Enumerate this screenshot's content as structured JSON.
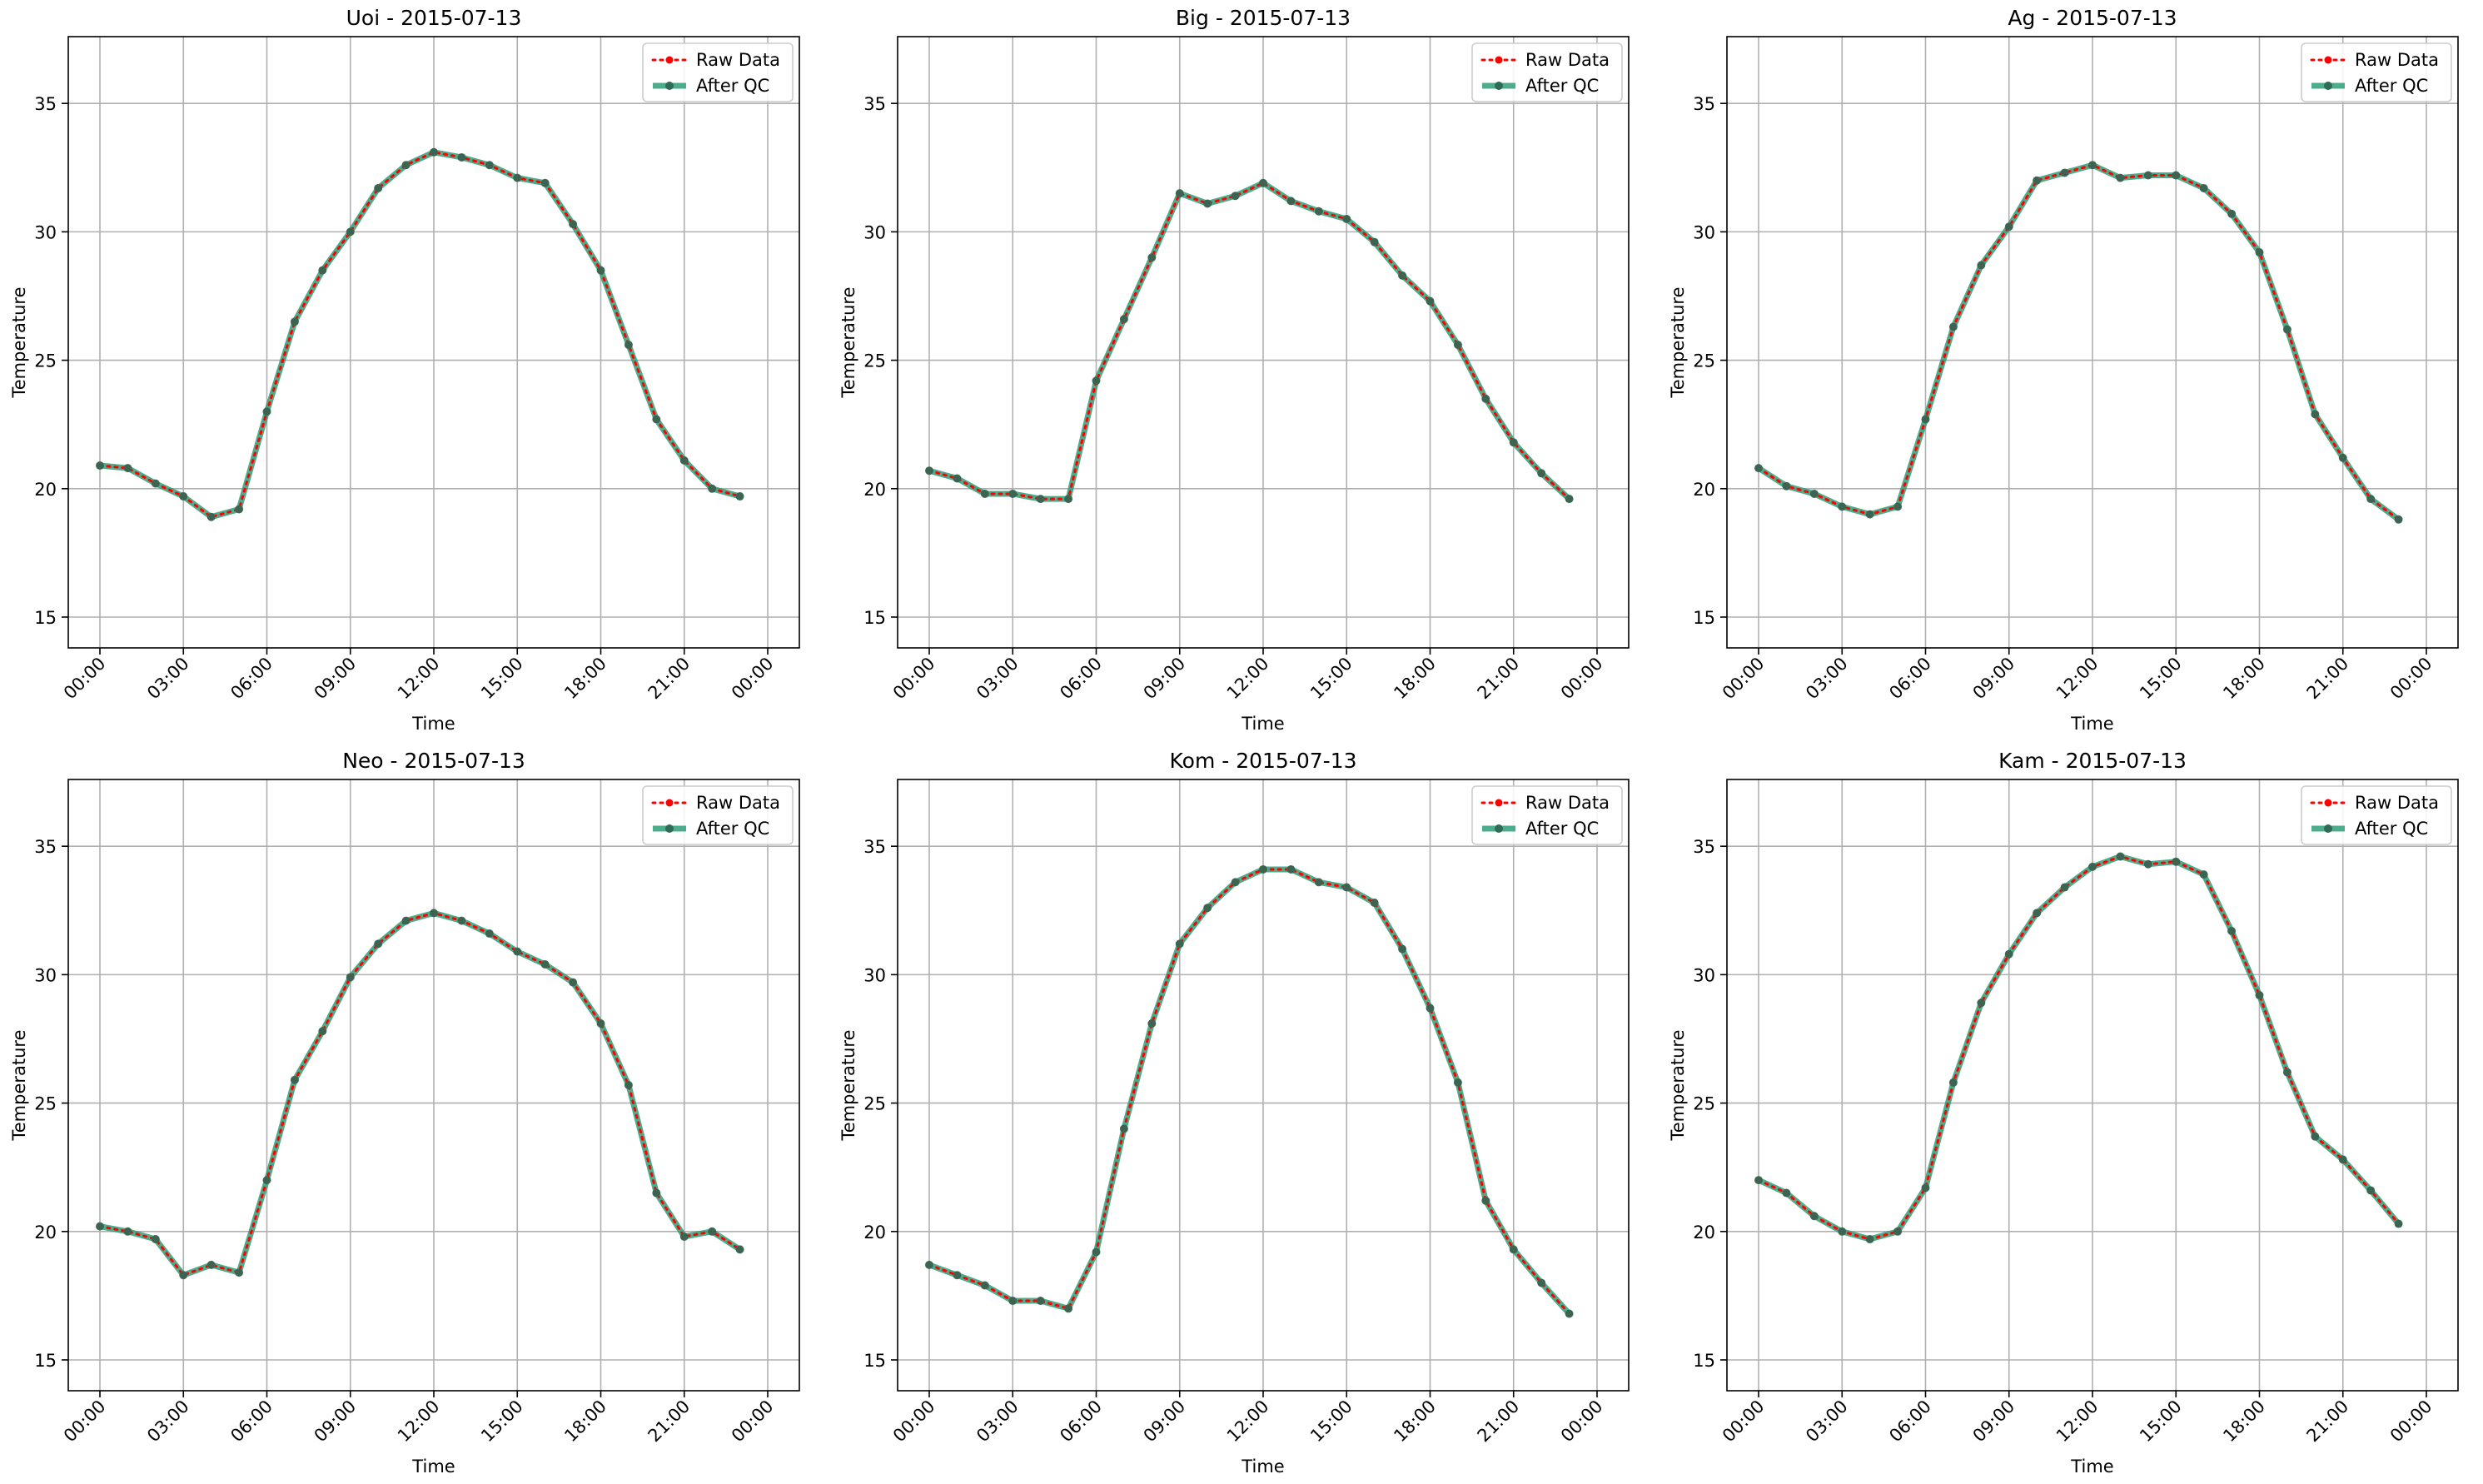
{
  "chart_data": {
    "type": "line",
    "x": [
      "00:00",
      "01:00",
      "02:00",
      "03:00",
      "04:00",
      "05:00",
      "06:00",
      "07:00",
      "08:00",
      "09:00",
      "10:00",
      "11:00",
      "12:00",
      "13:00",
      "14:00",
      "15:00",
      "16:00",
      "17:00",
      "18:00",
      "19:00",
      "20:00",
      "21:00",
      "22:00",
      "23:00"
    ],
    "xticks": [
      "00:00",
      "03:00",
      "06:00",
      "09:00",
      "12:00",
      "15:00",
      "18:00",
      "21:00",
      "00:00"
    ],
    "xlabel": "Time",
    "ylabel": "Temperature",
    "ylim": [
      13.8,
      37.6
    ],
    "yticks": [
      15,
      20,
      25,
      30,
      35
    ],
    "grid": true,
    "legend": {
      "placement": "top-right",
      "entries": [
        "Raw Data",
        "After QC"
      ]
    },
    "colors": {
      "raw": "#ff0000",
      "qc": "#2e9e77",
      "marker": "#2f6b58",
      "grid": "#b0b0b0"
    },
    "panels": [
      {
        "title": "Uoi - 2015-07-13",
        "series": [
          {
            "name": "Raw Data",
            "values": [
              20.9,
              20.8,
              20.2,
              19.7,
              18.9,
              19.2,
              23.0,
              26.5,
              28.5,
              30.0,
              31.7,
              32.6,
              33.1,
              32.9,
              32.6,
              32.1,
              31.9,
              30.3,
              28.5,
              25.6,
              22.7,
              21.1,
              20.0,
              19.7
            ]
          },
          {
            "name": "After QC",
            "values": [
              20.9,
              20.8,
              20.2,
              19.7,
              18.9,
              19.2,
              23.0,
              26.5,
              28.5,
              30.0,
              31.7,
              32.6,
              33.1,
              32.9,
              32.6,
              32.1,
              31.9,
              30.3,
              28.5,
              25.6,
              22.7,
              21.1,
              20.0,
              19.7
            ]
          }
        ]
      },
      {
        "title": "Big - 2015-07-13",
        "series": [
          {
            "name": "Raw Data",
            "values": [
              20.7,
              20.4,
              19.8,
              19.8,
              19.6,
              19.6,
              24.2,
              26.6,
              29.0,
              31.5,
              31.1,
              31.4,
              31.9,
              31.2,
              30.8,
              30.5,
              29.6,
              28.3,
              27.3,
              25.6,
              23.5,
              21.8,
              20.6,
              19.6
            ]
          },
          {
            "name": "After QC",
            "values": [
              20.7,
              20.4,
              19.8,
              19.8,
              19.6,
              19.6,
              24.2,
              26.6,
              29.0,
              31.5,
              31.1,
              31.4,
              31.9,
              31.2,
              30.8,
              30.5,
              29.6,
              28.3,
              27.3,
              25.6,
              23.5,
              21.8,
              20.6,
              19.6
            ]
          }
        ]
      },
      {
        "title": "Ag - 2015-07-13",
        "series": [
          {
            "name": "Raw Data",
            "values": [
              20.8,
              20.1,
              19.8,
              19.3,
              19.0,
              19.3,
              22.7,
              26.3,
              28.7,
              30.2,
              32.0,
              32.3,
              32.6,
              32.1,
              32.2,
              32.2,
              31.7,
              30.7,
              29.2,
              26.2,
              22.9,
              21.2,
              19.6,
              18.8
            ]
          },
          {
            "name": "After QC",
            "values": [
              20.8,
              20.1,
              19.8,
              19.3,
              19.0,
              19.3,
              22.7,
              26.3,
              28.7,
              30.2,
              32.0,
              32.3,
              32.6,
              32.1,
              32.2,
              32.2,
              31.7,
              30.7,
              29.2,
              26.2,
              22.9,
              21.2,
              19.6,
              18.8
            ]
          }
        ]
      },
      {
        "title": "Neo - 2015-07-13",
        "series": [
          {
            "name": "Raw Data",
            "values": [
              20.2,
              20.0,
              19.7,
              18.3,
              18.7,
              18.4,
              22.0,
              25.9,
              27.8,
              29.9,
              31.2,
              32.1,
              32.4,
              32.1,
              31.6,
              30.9,
              30.4,
              29.7,
              28.1,
              25.7,
              21.5,
              19.8,
              20.0,
              19.3
            ]
          },
          {
            "name": "After QC",
            "values": [
              20.2,
              20.0,
              19.7,
              18.3,
              18.7,
              18.4,
              22.0,
              25.9,
              27.8,
              29.9,
              31.2,
              32.1,
              32.4,
              32.1,
              31.6,
              30.9,
              30.4,
              29.7,
              28.1,
              25.7,
              21.5,
              19.8,
              20.0,
              19.3
            ]
          }
        ]
      },
      {
        "title": "Kom - 2015-07-13",
        "series": [
          {
            "name": "Raw Data",
            "values": [
              18.7,
              18.3,
              17.9,
              17.3,
              17.3,
              17.0,
              19.2,
              24.0,
              28.1,
              31.2,
              32.6,
              33.6,
              34.1,
              34.1,
              33.6,
              33.4,
              32.8,
              31.0,
              28.7,
              25.8,
              21.2,
              19.3,
              18.0,
              16.8
            ]
          },
          {
            "name": "After QC",
            "values": [
              18.7,
              18.3,
              17.9,
              17.3,
              17.3,
              17.0,
              19.2,
              24.0,
              28.1,
              31.2,
              32.6,
              33.6,
              34.1,
              34.1,
              33.6,
              33.4,
              32.8,
              31.0,
              28.7,
              25.8,
              21.2,
              19.3,
              18.0,
              16.8
            ]
          }
        ]
      },
      {
        "title": "Kam - 2015-07-13",
        "series": [
          {
            "name": "Raw Data",
            "values": [
              22.0,
              21.5,
              20.6,
              20.0,
              19.7,
              20.0,
              21.7,
              25.8,
              28.9,
              30.8,
              32.4,
              33.4,
              34.2,
              34.6,
              34.3,
              34.4,
              33.9,
              31.7,
              29.2,
              26.2,
              23.7,
              22.8,
              21.6,
              20.3
            ]
          },
          {
            "name": "After QC",
            "values": [
              22.0,
              21.5,
              20.6,
              20.0,
              19.7,
              20.0,
              21.7,
              25.8,
              28.9,
              30.8,
              32.4,
              33.4,
              34.2,
              34.6,
              34.3,
              34.4,
              33.9,
              31.7,
              29.2,
              26.2,
              23.7,
              22.8,
              21.6,
              20.3
            ]
          }
        ]
      }
    ]
  }
}
